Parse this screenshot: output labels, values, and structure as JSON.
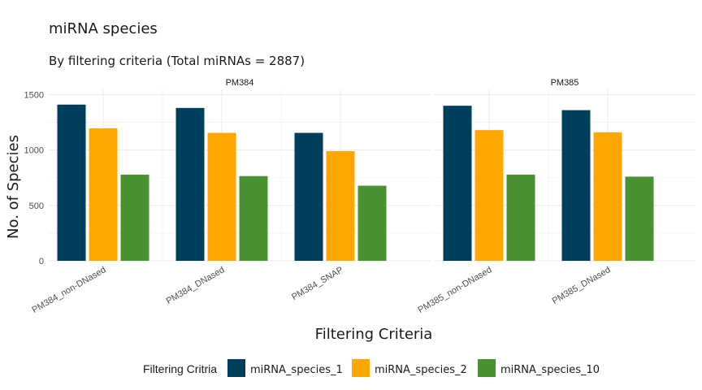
{
  "chart_data": {
    "type": "bar",
    "title": "miRNA species",
    "subtitle": "By filtering criteria (Total miRNAs = 2887)",
    "xlabel": "Filtering Criteria",
    "ylabel": "No. of Species",
    "ylim": [
      0,
      1500
    ],
    "yticks": [
      0,
      500,
      1000,
      1500
    ],
    "legend": {
      "title": "Filtering Critria",
      "position": "bottom"
    },
    "series": [
      {
        "name": "miRNA_species_1",
        "color": "#003f5c"
      },
      {
        "name": "miRNA_species_2",
        "color": "#ffa600"
      },
      {
        "name": "miRNA_species_10",
        "color": "#4a9132"
      }
    ],
    "facets": [
      {
        "label": "PM384",
        "categories": [
          "PM384_non-DNased",
          "PM384_DNased",
          "PM384_SNAP"
        ],
        "values": [
          [
            1410,
            1195,
            778
          ],
          [
            1380,
            1155,
            765
          ],
          [
            1155,
            990,
            678
          ]
        ]
      },
      {
        "label": "PM385",
        "categories": [
          "PM385_non-DNased",
          "PM385_DNased"
        ],
        "values": [
          [
            1400,
            1180,
            778
          ],
          [
            1360,
            1160,
            760
          ]
        ]
      }
    ]
  }
}
